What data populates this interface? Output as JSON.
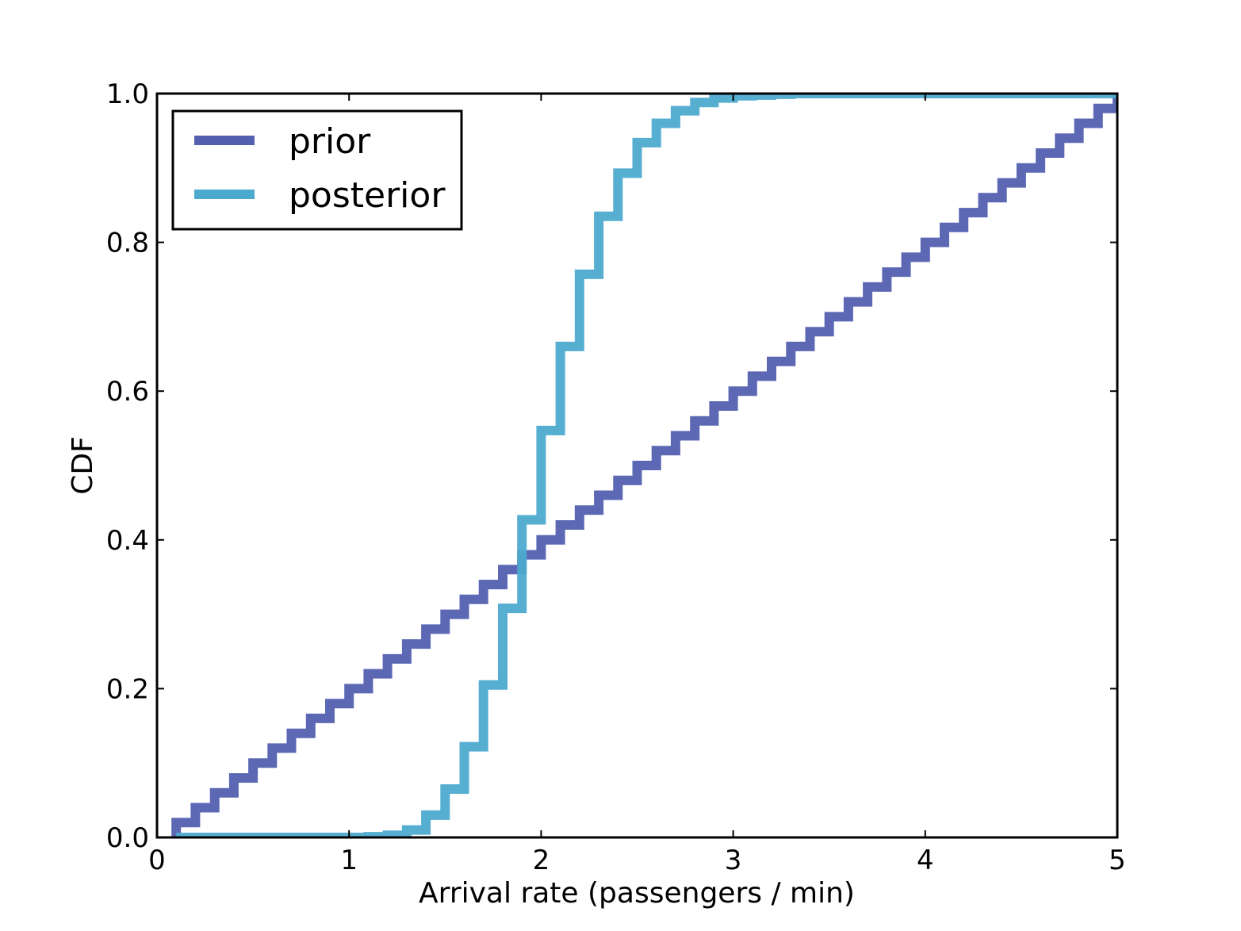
{
  "chart_data": {
    "type": "line",
    "step": true,
    "title": "",
    "xlabel": "Arrival rate (passengers / min)",
    "ylabel": "CDF",
    "xlim": [
      0,
      5
    ],
    "ylim": [
      0,
      1.0
    ],
    "xticks": [
      0,
      1,
      2,
      3,
      4,
      5
    ],
    "xtick_labels": [
      "0",
      "1",
      "2",
      "3",
      "4",
      "5"
    ],
    "yticks": [
      0,
      0.2,
      0.4,
      0.6,
      0.8,
      1.0
    ],
    "ytick_labels": [
      "0.0",
      "0.2",
      "0.4",
      "0.6",
      "0.8",
      "1.0"
    ],
    "grid": false,
    "legend_position": "top-left",
    "series": [
      {
        "name": "prior",
        "color": "#5360b0",
        "x": [
          0.1,
          0.2,
          0.3,
          0.4,
          0.5,
          0.6,
          0.7,
          0.8,
          0.9,
          1.0,
          1.1,
          1.2,
          1.3,
          1.4,
          1.5,
          1.6,
          1.7,
          1.8,
          1.9,
          2.0,
          2.1,
          2.2,
          2.3,
          2.4,
          2.5,
          2.6,
          2.7,
          2.8,
          2.9,
          3.0,
          3.1,
          3.2,
          3.3,
          3.4,
          3.5,
          3.6,
          3.7,
          3.8,
          3.9,
          4.0,
          4.1,
          4.2,
          4.3,
          4.4,
          4.5,
          4.6,
          4.7,
          4.8,
          4.9,
          5.0
        ],
        "y": [
          0.02,
          0.04,
          0.06,
          0.08,
          0.1,
          0.12,
          0.14,
          0.16,
          0.18,
          0.2,
          0.22,
          0.24,
          0.26,
          0.28,
          0.3,
          0.32,
          0.34,
          0.36,
          0.38,
          0.4,
          0.42,
          0.44,
          0.46,
          0.48,
          0.5,
          0.52,
          0.54,
          0.56,
          0.58,
          0.6,
          0.62,
          0.64,
          0.66,
          0.68,
          0.7,
          0.72,
          0.74,
          0.76,
          0.78,
          0.8,
          0.82,
          0.84,
          0.86,
          0.88,
          0.9,
          0.92,
          0.94,
          0.96,
          0.98,
          1.0
        ]
      },
      {
        "name": "posterior",
        "color": "#4daacf",
        "x": [
          0.1,
          0.2,
          0.3,
          0.4,
          0.5,
          0.6,
          0.7,
          0.8,
          0.9,
          1.0,
          1.1,
          1.2,
          1.3,
          1.4,
          1.5,
          1.6,
          1.7,
          1.8,
          1.9,
          2.0,
          2.1,
          2.2,
          2.3,
          2.4,
          2.5,
          2.6,
          2.7,
          2.8,
          2.9,
          3.0,
          3.1,
          3.2,
          3.3,
          3.4,
          3.5,
          3.6,
          3.7,
          3.8,
          3.9,
          4.0,
          4.1,
          4.2,
          4.3,
          4.4,
          4.5,
          4.6,
          4.7,
          4.8,
          4.9,
          5.0
        ],
        "y": [
          0.0,
          0.0,
          0.0,
          0.0,
          0.0,
          0.0,
          0.0,
          0.0,
          0.0,
          0.0,
          0.001,
          0.003,
          0.01,
          0.03,
          0.065,
          0.122,
          0.205,
          0.308,
          0.427,
          0.547,
          0.66,
          0.757,
          0.835,
          0.893,
          0.934,
          0.96,
          0.977,
          0.988,
          0.994,
          0.997,
          0.998,
          0.999,
          1.0,
          1.0,
          1.0,
          1.0,
          1.0,
          1.0,
          1.0,
          1.0,
          1.0,
          1.0,
          1.0,
          1.0,
          1.0,
          1.0,
          1.0,
          1.0,
          1.0,
          1.0
        ]
      }
    ]
  }
}
